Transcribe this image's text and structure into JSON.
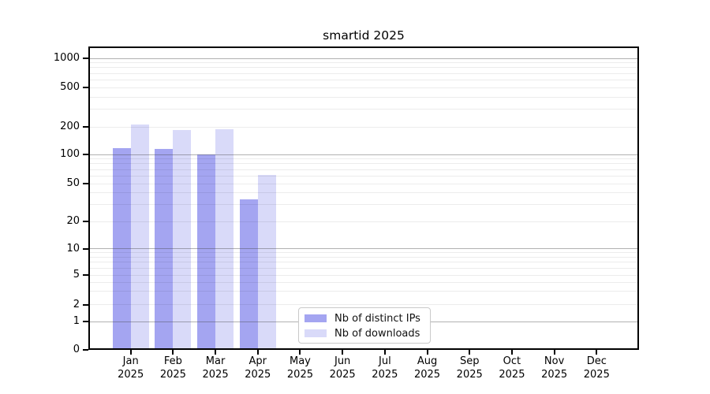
{
  "chart_data": {
    "type": "bar",
    "title": "smartid 2025",
    "categories": [
      "Jan",
      "Feb",
      "Mar",
      "Apr",
      "May",
      "Jun",
      "Jul",
      "Aug",
      "Sep",
      "Oct",
      "Nov",
      "Dec"
    ],
    "year_label": "2025",
    "series": [
      {
        "name": "Nb of distinct IPs",
        "color": "#a4a5f1",
        "values": [
          118,
          115,
          100,
          34,
          null,
          null,
          null,
          null,
          null,
          null,
          null,
          null
        ]
      },
      {
        "name": "Nb of downloads",
        "color": "#d9daf9",
        "values": [
          210,
          183,
          190,
          61,
          null,
          null,
          null,
          null,
          null,
          null,
          null,
          null
        ]
      }
    ],
    "y_axis": {
      "ticks": [
        0,
        1,
        2,
        5,
        10,
        20,
        50,
        100,
        200,
        500,
        1000
      ],
      "scale": "log-like",
      "ylim": [
        0,
        1400
      ]
    },
    "x_axis": {
      "label_lines": 2
    },
    "legend": {
      "position": "inside-bottom-center",
      "border_color": "#c9c9c9"
    },
    "grid": "on",
    "colors": {
      "background": "#ffffff",
      "spine": "#000000",
      "grid_major": "#6e6e6e",
      "grid_minor": "#ececec",
      "text": "#000000"
    }
  }
}
